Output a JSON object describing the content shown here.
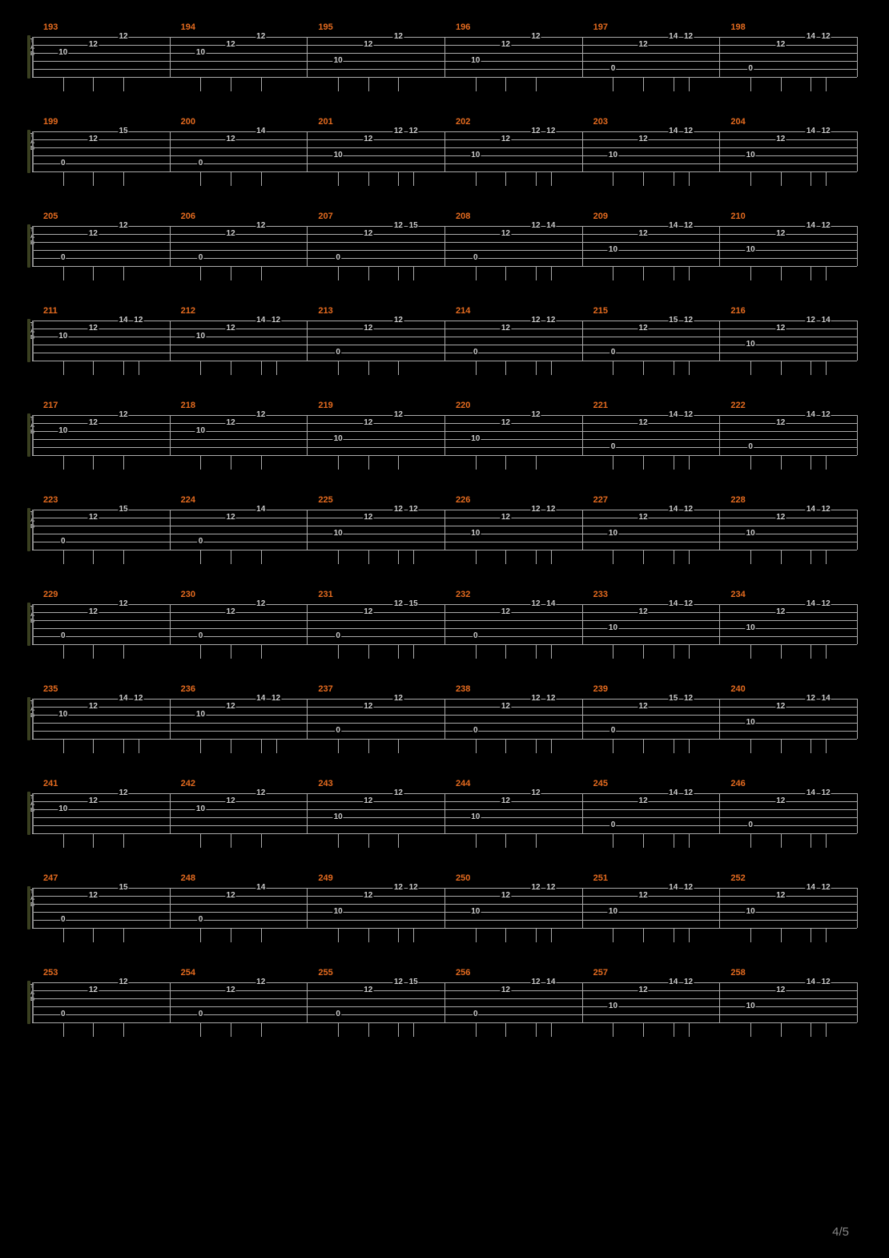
{
  "page_number": "4/5",
  "colors": {
    "background": "#000000",
    "measure_number": "#e56b1f",
    "staff_line": "#aaaaaa",
    "fret_text": "#cccccc",
    "bracket": "#3a4020"
  },
  "layout": {
    "staff_width": 1030,
    "measures_per_system": 6,
    "string_count": 6,
    "string_spacing": 10,
    "tab_letters": [
      "T",
      "A",
      "B"
    ]
  },
  "note_patterns": {
    "A": [
      [
        1,
        3,
        "10"
      ],
      [
        2,
        2,
        "12"
      ],
      [
        3,
        1,
        "12"
      ]
    ],
    "B": [
      [
        1,
        4,
        "10"
      ],
      [
        2,
        2,
        "12"
      ],
      [
        3,
        1,
        "12"
      ]
    ],
    "C": [
      [
        1,
        5,
        "0"
      ],
      [
        2,
        2,
        "12"
      ],
      [
        3,
        1,
        "14"
      ],
      [
        3.5,
        1,
        "12"
      ]
    ],
    "D": [
      [
        1,
        5,
        "0"
      ],
      [
        2,
        2,
        "12"
      ],
      [
        3,
        1,
        "15"
      ]
    ],
    "E": [
      [
        1,
        5,
        "0"
      ],
      [
        2,
        2,
        "12"
      ],
      [
        3,
        1,
        "14"
      ]
    ],
    "F": [
      [
        1,
        4,
        "10"
      ],
      [
        2,
        2,
        "12"
      ],
      [
        3,
        1,
        "12"
      ],
      [
        3.5,
        1,
        "12"
      ]
    ],
    "G": [
      [
        1,
        4,
        "10"
      ],
      [
        2,
        2,
        "12"
      ],
      [
        3,
        1,
        "14"
      ],
      [
        3.5,
        1,
        "12"
      ]
    ],
    "H": [
      [
        1,
        5,
        "0"
      ],
      [
        2,
        2,
        "12"
      ],
      [
        3,
        1,
        "12"
      ]
    ],
    "I": [
      [
        1,
        5,
        "0"
      ],
      [
        2,
        2,
        "12"
      ],
      [
        3,
        1,
        "12"
      ],
      [
        3.5,
        1,
        "15"
      ]
    ],
    "J": [
      [
        1,
        5,
        "0"
      ],
      [
        2,
        2,
        "12"
      ],
      [
        3,
        1,
        "12"
      ],
      [
        3.5,
        1,
        "14"
      ]
    ],
    "K": [
      [
        1,
        3,
        "10"
      ],
      [
        2,
        2,
        "12"
      ],
      [
        3,
        1,
        "14"
      ],
      [
        3.5,
        1,
        "12"
      ]
    ],
    "L": [
      [
        1,
        5,
        "0"
      ],
      [
        2,
        2,
        "12"
      ],
      [
        3,
        1,
        "12"
      ],
      [
        3.5,
        1,
        "12"
      ]
    ],
    "M": [
      [
        1,
        5,
        "0"
      ],
      [
        2,
        2,
        "12"
      ],
      [
        3,
        1,
        "15"
      ],
      [
        3.5,
        1,
        "12"
      ]
    ],
    "N": [
      [
        1,
        4,
        "10"
      ],
      [
        2,
        2,
        "12"
      ],
      [
        3,
        1,
        "12"
      ],
      [
        3.5,
        1,
        "14"
      ]
    ]
  },
  "systems": [
    {
      "start": 193,
      "patterns": [
        "A",
        "A",
        "B",
        "B",
        "C",
        "C"
      ]
    },
    {
      "start": 199,
      "patterns": [
        "D",
        "E",
        "F",
        "F",
        "G",
        "G"
      ]
    },
    {
      "start": 205,
      "patterns": [
        "H",
        "H",
        "I",
        "J",
        "G",
        "G"
      ]
    },
    {
      "start": 211,
      "patterns": [
        "K",
        "K",
        "H",
        "L",
        "M",
        "N"
      ]
    },
    {
      "start": 217,
      "patterns": [
        "A",
        "A",
        "B",
        "B",
        "C",
        "C"
      ]
    },
    {
      "start": 223,
      "patterns": [
        "D",
        "E",
        "F",
        "F",
        "G",
        "G"
      ]
    },
    {
      "start": 229,
      "patterns": [
        "H",
        "H",
        "I",
        "J",
        "G",
        "G"
      ]
    },
    {
      "start": 235,
      "patterns": [
        "K",
        "K",
        "H",
        "L",
        "M",
        "N"
      ]
    },
    {
      "start": 241,
      "patterns": [
        "A",
        "A",
        "B",
        "B",
        "C",
        "C"
      ]
    },
    {
      "start": 247,
      "patterns": [
        "D",
        "E",
        "F",
        "F",
        "G",
        "G"
      ]
    },
    {
      "start": 253,
      "patterns": [
        "H",
        "H",
        "I",
        "J",
        "G",
        "G"
      ]
    }
  ]
}
